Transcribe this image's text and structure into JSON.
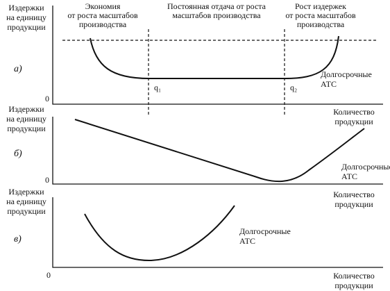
{
  "panels": [
    {
      "marker": "а)",
      "origin": "0",
      "y_label": [
        "Издержки",
        "на единицу",
        "продукции"
      ],
      "x_label": [
        "Количество",
        "продукции"
      ],
      "curve_label": [
        "Долгосрочные",
        "АТС"
      ],
      "q_labels": [
        "q₁",
        "q₂"
      ],
      "regions": [
        [
          "Экономия",
          "от роста масштабов",
          "производства"
        ],
        [
          "Постоянная отдача от роста",
          "масштабов производства"
        ],
        [
          "Рост издержек",
          "от роста масштабов",
          "производства"
        ]
      ]
    },
    {
      "marker": "б)",
      "origin": "0",
      "y_label": [
        "Издержки",
        "на единицу",
        "продукции"
      ],
      "x_label": [
        "Количество",
        "продукции"
      ],
      "curve_label": [
        "Долгосрочные",
        "АТС"
      ]
    },
    {
      "marker": "в)",
      "origin": "0",
      "y_label": [
        "Издержки",
        "на единицу",
        "продукции"
      ],
      "x_label": [
        "Количество",
        "продукции"
      ],
      "curve_label": [
        "Долгосрочные",
        "АТС"
      ]
    }
  ]
}
